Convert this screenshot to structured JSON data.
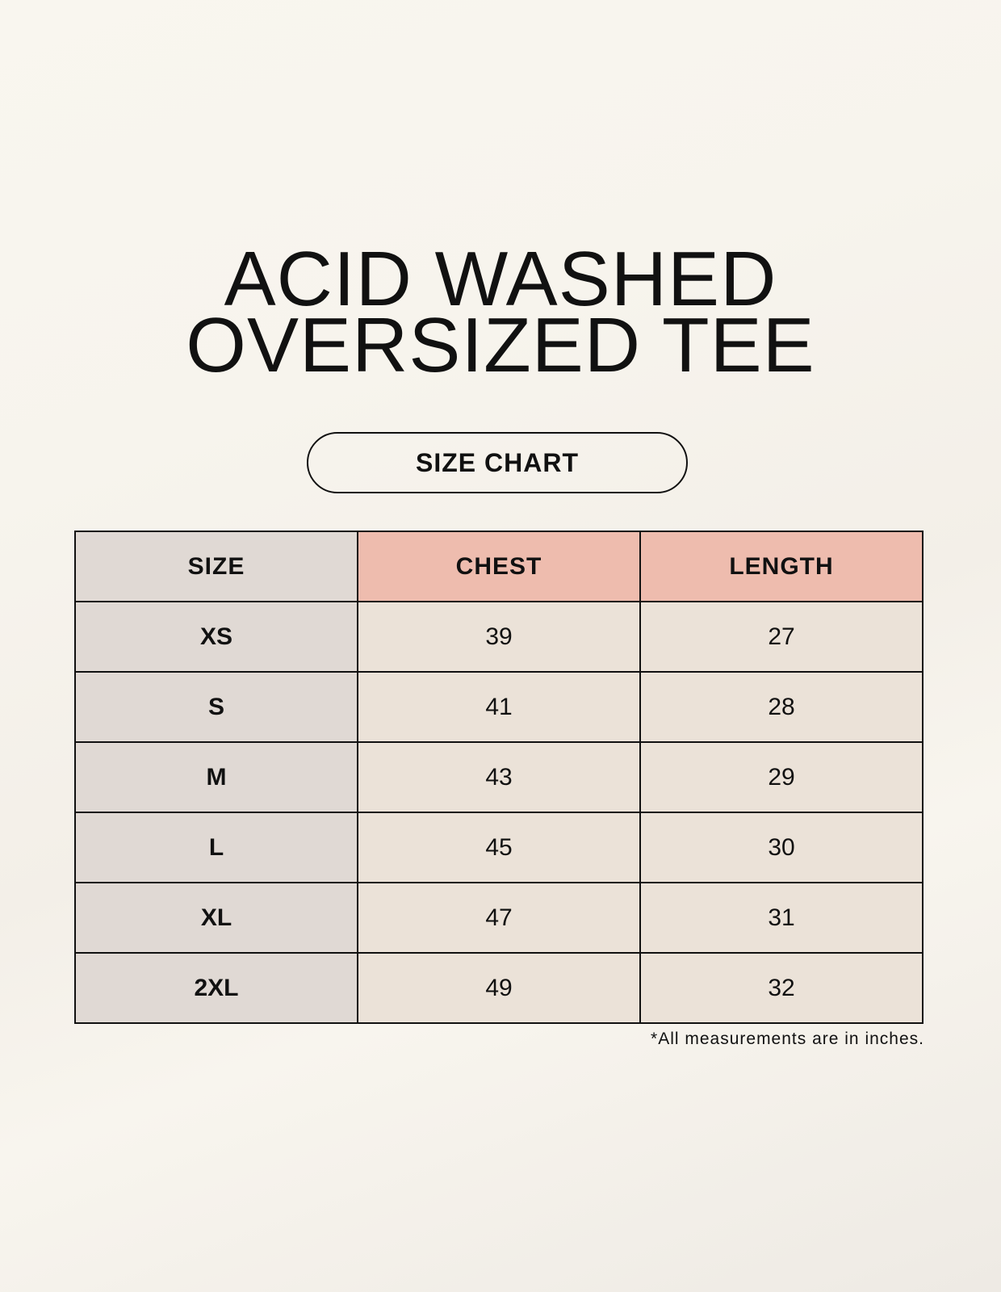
{
  "title_lines": [
    "ACID WASHED",
    "OVERSIZED TEE"
  ],
  "subtitle": "SIZE CHART",
  "table": {
    "headers": [
      "SIZE",
      "CHEST",
      "LENGTH"
    ],
    "rows": [
      [
        "XS",
        "39",
        "27"
      ],
      [
        "S",
        "41",
        "28"
      ],
      [
        "M",
        "43",
        "29"
      ],
      [
        "L",
        "45",
        "30"
      ],
      [
        "XL",
        "47",
        "31"
      ],
      [
        "2XL",
        "49",
        "32"
      ]
    ]
  },
  "footnote": "*All measurements are in inches.",
  "colors": {
    "size_column": "#e0d9d4",
    "header_accent": "#eebcae",
    "value_cells": "#ebe2d8"
  }
}
